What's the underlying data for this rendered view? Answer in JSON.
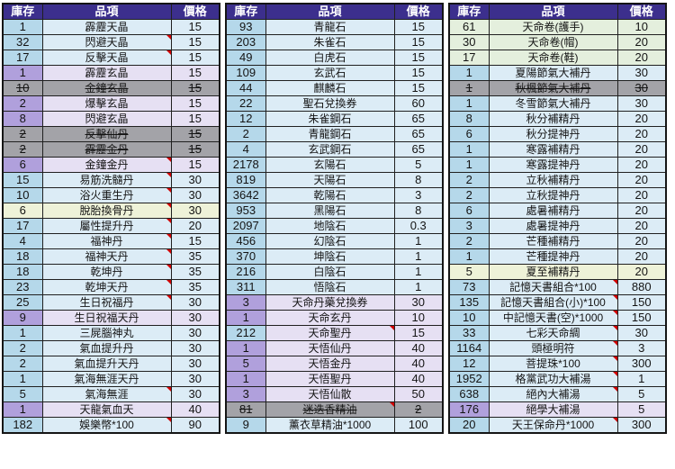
{
  "header": {
    "stock": "庫存",
    "item": "品項",
    "price": "價格"
  },
  "colors": {
    "header_bg": "#3c2f8d",
    "header_text": "#ffffff",
    "blue_stock": "#b5d8ea",
    "blue_cell": "#dcecf6",
    "purple_stock": "#b0a0dc",
    "purple_cell": "#e6e0f3",
    "gray_cell": "#a3a3a8",
    "green_cell": "#e4efdd",
    "lime_cell": "#eef2d8",
    "marker_red": "#d00000"
  },
  "row_columns": [
    "stock",
    "item",
    "price",
    "style",
    "has_marker"
  ],
  "panels": [
    {
      "rows": [
        [
          "1",
          "霹靂天晶",
          "15",
          "blue",
          0
        ],
        [
          "32",
          "閃避天晶",
          "15",
          "blue",
          1
        ],
        [
          "17",
          "反擊天晶",
          "15",
          "blue",
          1
        ],
        [
          "1",
          "霹靂玄晶",
          "15",
          "purple",
          0
        ],
        [
          "10",
          "金鐘玄晶",
          "15",
          "gray",
          0
        ],
        [
          "2",
          "爆擊玄晶",
          "15",
          "purple",
          0
        ],
        [
          "8",
          "閃避玄晶",
          "15",
          "purple",
          0
        ],
        [
          "2",
          "反擊仙丹",
          "15",
          "gray",
          0
        ],
        [
          "2",
          "霹靂金丹",
          "15",
          "gray",
          0
        ],
        [
          "6",
          "金鐘金丹",
          "15",
          "purple",
          1
        ],
        [
          "15",
          "易筋洗髓丹",
          "30",
          "blue",
          1
        ],
        [
          "10",
          "浴火重生丹",
          "30",
          "blue",
          1
        ],
        [
          "6",
          "脫胎換骨丹",
          "30",
          "lime",
          1
        ],
        [
          "17",
          "屬性提升丹",
          "20",
          "blue",
          1
        ],
        [
          "4",
          "福神丹",
          "15",
          "blue",
          1
        ],
        [
          "18",
          "福神天丹",
          "35",
          "blue",
          1
        ],
        [
          "18",
          "乾坤丹",
          "35",
          "blue",
          1
        ],
        [
          "23",
          "乾坤天丹",
          "35",
          "blue",
          1
        ],
        [
          "25",
          "生日祝福丹",
          "30",
          "blue",
          1
        ],
        [
          "9",
          "生日祝福天丹",
          "30",
          "purple",
          0
        ],
        [
          "1",
          "三屍腦神丸",
          "30",
          "blue",
          0
        ],
        [
          "2",
          "氣血提升丹",
          "30",
          "blue",
          0
        ],
        [
          "2",
          "氣血提升天丹",
          "30",
          "blue",
          0
        ],
        [
          "1",
          "氣海無涯天丹",
          "30",
          "blue",
          0
        ],
        [
          "5",
          "氣海無涯",
          "30",
          "blue",
          1
        ],
        [
          "1",
          "天龍氣血天",
          "40",
          "purple",
          0
        ],
        [
          "182",
          "娛樂幣*100",
          "90",
          "blue",
          1
        ]
      ]
    },
    {
      "rows": [
        [
          "93",
          "青龍石",
          "15",
          "blue",
          0
        ],
        [
          "203",
          "朱雀石",
          "15",
          "blue",
          0
        ],
        [
          "49",
          "白虎石",
          "15",
          "blue",
          0
        ],
        [
          "109",
          "玄武石",
          "15",
          "blue",
          0
        ],
        [
          "44",
          "麒麟石",
          "15",
          "blue",
          0
        ],
        [
          "22",
          "聖石兌換券",
          "60",
          "blue",
          0
        ],
        [
          "12",
          "朱雀鋼石",
          "65",
          "blue",
          0
        ],
        [
          "2",
          "青龍鋼石",
          "65",
          "blue",
          0
        ],
        [
          "4",
          "玄武鋼石",
          "65",
          "blue",
          0
        ],
        [
          "2178",
          "玄陽石",
          "5",
          "blue",
          0
        ],
        [
          "819",
          "天陽石",
          "8",
          "blue",
          0
        ],
        [
          "3642",
          "乾陽石",
          "3",
          "blue",
          0
        ],
        [
          "953",
          "黑陽石",
          "8",
          "blue",
          0
        ],
        [
          "2097",
          "地陰石",
          "0.3",
          "blue",
          0
        ],
        [
          "456",
          "幻陰石",
          "1",
          "blue",
          0
        ],
        [
          "370",
          "坤陰石",
          "1",
          "blue",
          0
        ],
        [
          "216",
          "白陰石",
          "1",
          "blue",
          0
        ],
        [
          "311",
          "悟陰石",
          "1",
          "blue",
          0
        ],
        [
          "3",
          "天命丹藥兌換券",
          "30",
          "purple",
          0
        ],
        [
          "1",
          "天命玄丹",
          "10",
          "purple",
          0
        ],
        [
          "212",
          "天命聖丹",
          "15",
          "mixed",
          1
        ],
        [
          "1",
          "天悟仙丹",
          "40",
          "purple",
          0
        ],
        [
          "5",
          "天悟金丹",
          "40",
          "purple",
          0
        ],
        [
          "1",
          "天悟聖丹",
          "40",
          "purple",
          0
        ],
        [
          "3",
          "天悟仙散",
          "50",
          "purple",
          0
        ],
        [
          "81",
          "迷迭香精油",
          "2",
          "gray",
          1
        ],
        [
          "9",
          "薰衣草精油*1000",
          "100",
          "blue",
          0
        ]
      ]
    },
    {
      "rows": [
        [
          "61",
          "天命卷(護手)",
          "10",
          "green",
          0
        ],
        [
          "30",
          "天命卷(帽)",
          "20",
          "green",
          0
        ],
        [
          "17",
          "天命卷(鞋)",
          "20",
          "green",
          0
        ],
        [
          "1",
          "夏陽節氣大補丹",
          "30",
          "blue",
          0
        ],
        [
          "1",
          "秋楓節氣大補丹",
          "30",
          "gray",
          0
        ],
        [
          "1",
          "冬雪節氣大補丹",
          "30",
          "blue",
          0
        ],
        [
          "8",
          "秋分補精丹",
          "20",
          "blue",
          0
        ],
        [
          "6",
          "秋分提神丹",
          "20",
          "blue",
          0
        ],
        [
          "1",
          "寒露補精丹",
          "20",
          "blue",
          0
        ],
        [
          "1",
          "寒露提神丹",
          "20",
          "blue",
          0
        ],
        [
          "2",
          "立秋補精丹",
          "20",
          "blue",
          0
        ],
        [
          "2",
          "立秋提神丹",
          "20",
          "blue",
          0
        ],
        [
          "6",
          "處暑補精丹",
          "20",
          "blue",
          0
        ],
        [
          "3",
          "處暑提神丹",
          "20",
          "blue",
          0
        ],
        [
          "2",
          "芒種補精丹",
          "20",
          "blue",
          0
        ],
        [
          "1",
          "芒種提神丹",
          "20",
          "blue",
          0
        ],
        [
          "5",
          "夏至補精丹",
          "20",
          "lime",
          0
        ],
        [
          "73",
          "記憶天書組合*100",
          "880",
          "blue",
          1
        ],
        [
          "135",
          "記憶天書組合(小)*100",
          "150",
          "blue",
          1
        ],
        [
          "10",
          "中記憶天書(空)*1000",
          "150",
          "blue",
          1
        ],
        [
          "33",
          "七彩天命綢",
          "30",
          "blue",
          1
        ],
        [
          "1164",
          "頭極明符",
          "3",
          "blue",
          1
        ],
        [
          "12",
          "菩提珠*100",
          "300",
          "blue",
          1
        ],
        [
          "1952",
          "格黨武功大補湯",
          "1",
          "blue",
          1
        ],
        [
          "638",
          "絕內大補湯",
          "5",
          "blue",
          1
        ],
        [
          "176",
          "絕學大補湯",
          "5",
          "purple",
          0
        ],
        [
          "20",
          "天王保命丹*1000",
          "300",
          "blue",
          1
        ]
      ]
    }
  ]
}
